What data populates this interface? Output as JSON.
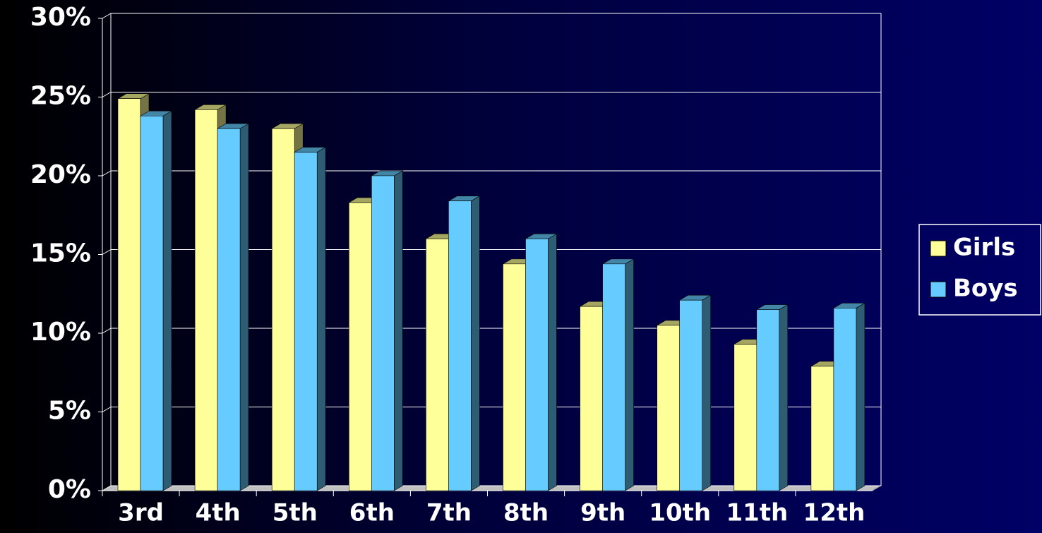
{
  "chart_data": {
    "type": "bar3d",
    "categories": [
      "3rd",
      "4th",
      "5th",
      "6th",
      "7th",
      "8th",
      "9th",
      "10th",
      "11th",
      "12th"
    ],
    "series": [
      {
        "name": "Girls",
        "color": "#ffff99",
        "values": [
          24.9,
          24.2,
          23.0,
          18.3,
          16.0,
          14.4,
          11.7,
          10.5,
          9.3,
          7.9
        ]
      },
      {
        "name": "Boys",
        "color": "#66ccff",
        "values": [
          23.8,
          23.0,
          21.5,
          20.0,
          18.4,
          16.0,
          14.4,
          12.1,
          11.5,
          11.6
        ]
      }
    ],
    "ylim": [
      0,
      30
    ],
    "yticks": [
      {
        "value": 0,
        "label": "0%"
      },
      {
        "value": 5,
        "label": "5%"
      },
      {
        "value": 10,
        "label": "10%"
      },
      {
        "value": 15,
        "label": "15%"
      },
      {
        "value": 20,
        "label": "20%"
      },
      {
        "value": 25,
        "label": "25%"
      },
      {
        "value": 30,
        "label": "30%"
      }
    ],
    "grid": true,
    "legend": "right"
  }
}
